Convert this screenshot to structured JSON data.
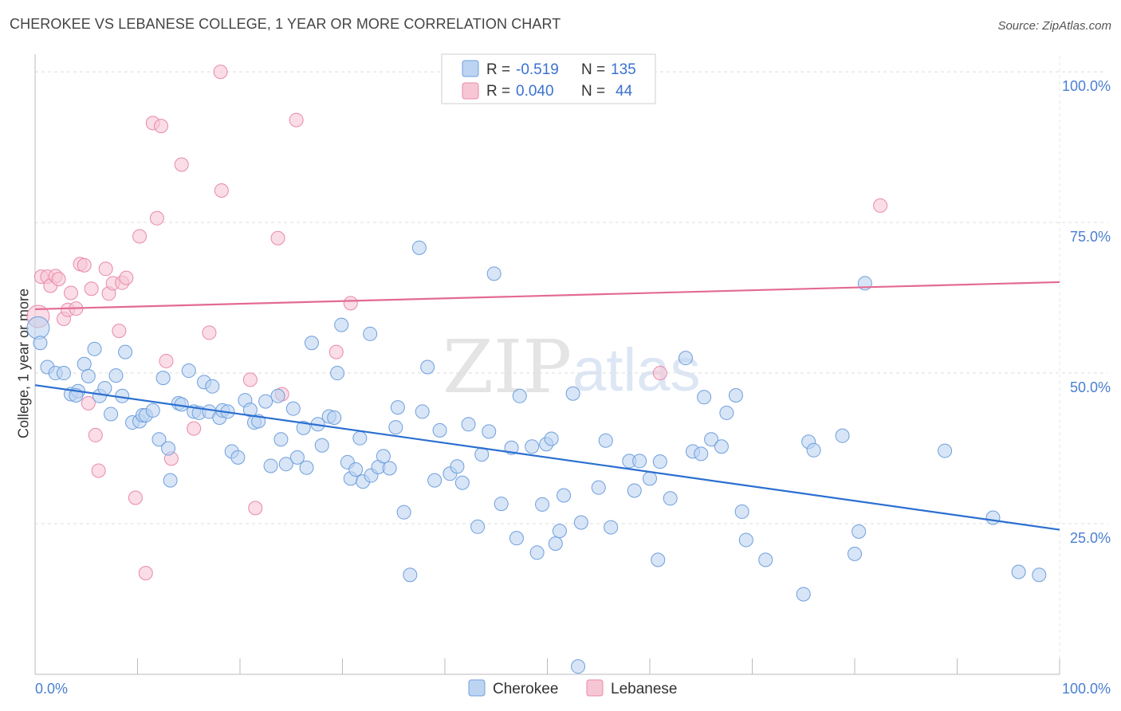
{
  "header": {
    "title": "CHEROKEE VS LEBANESE COLLEGE, 1 YEAR OR MORE CORRELATION CHART",
    "source": "Source: ZipAtlas.com"
  },
  "watermark": {
    "zip": "ZIP",
    "atlas": "atlas"
  },
  "colors": {
    "cherokee_fill": "#bcd4f2",
    "cherokee_stroke": "#6f9fdc",
    "cherokee_line": "#2b6fd0",
    "lebanese_fill": "#f7c6d5",
    "lebanese_stroke": "#e98aa8",
    "lebanese_line": "#e36a93",
    "tick_label": "#4a7fd0"
  },
  "legend_top": {
    "rows": [
      {
        "r_label": "R =",
        "r_value": "-0.519",
        "n_label": "N =",
        "n_value": "135"
      },
      {
        "r_label": "R =",
        "r_value": "0.040",
        "n_label": "N =",
        "n_value": "44"
      }
    ]
  },
  "chart_data": {
    "type": "scatter",
    "title": "CHEROKEE VS LEBANESE COLLEGE, 1 YEAR OR MORE CORRELATION CHART",
    "xlabel": "",
    "ylabel": "College, 1 year or more",
    "xlim": [
      0,
      100
    ],
    "ylim": [
      0,
      102
    ],
    "x_tick_labels": [
      "0.0%",
      "100.0%"
    ],
    "y_tick_labels": [
      "100.0%",
      "75.0%",
      "50.0%",
      "25.0%"
    ],
    "y_ticks": [
      100,
      75,
      50,
      25
    ],
    "grid": true,
    "legend_placement": "bottom-center",
    "series": [
      {
        "name": "Cherokee",
        "r": -0.519,
        "n": 135,
        "trend": [
          [
            0,
            48.0
          ],
          [
            100,
            24.0
          ]
        ],
        "points": [
          [
            0.3,
            57.5
          ],
          [
            0.5,
            55.0
          ],
          [
            1.2,
            51.0
          ],
          [
            2.0,
            50.0
          ],
          [
            2.8,
            50.0
          ],
          [
            3.5,
            46.5
          ],
          [
            4.2,
            47.0
          ],
          [
            4.0,
            46.3
          ],
          [
            4.8,
            51.5
          ],
          [
            5.2,
            49.5
          ],
          [
            5.8,
            54.0
          ],
          [
            6.3,
            46.2
          ],
          [
            6.8,
            47.5
          ],
          [
            7.4,
            43.2
          ],
          [
            7.9,
            49.6
          ],
          [
            8.5,
            46.2
          ],
          [
            8.8,
            53.5
          ],
          [
            9.5,
            41.8
          ],
          [
            10.2,
            42.0
          ],
          [
            10.5,
            43.0
          ],
          [
            10.8,
            43.0
          ],
          [
            11.5,
            43.8
          ],
          [
            12.1,
            39.0
          ],
          [
            12.5,
            49.2
          ],
          [
            13.0,
            37.5
          ],
          [
            13.2,
            32.2
          ],
          [
            14.0,
            45.0
          ],
          [
            14.3,
            44.8
          ],
          [
            15.0,
            50.4
          ],
          [
            15.5,
            43.6
          ],
          [
            16.0,
            43.4
          ],
          [
            16.5,
            48.5
          ],
          [
            17.0,
            43.6
          ],
          [
            17.3,
            47.8
          ],
          [
            18.0,
            42.6
          ],
          [
            18.3,
            43.8
          ],
          [
            18.8,
            43.6
          ],
          [
            19.2,
            37.0
          ],
          [
            19.8,
            36.0
          ],
          [
            20.5,
            45.5
          ],
          [
            21.0,
            43.9
          ],
          [
            21.4,
            41.8
          ],
          [
            21.8,
            42.0
          ],
          [
            22.5,
            45.3
          ],
          [
            23.0,
            34.6
          ],
          [
            23.7,
            46.2
          ],
          [
            24.0,
            39.0
          ],
          [
            24.5,
            34.9
          ],
          [
            25.2,
            44.1
          ],
          [
            25.6,
            36.0
          ],
          [
            26.2,
            40.9
          ],
          [
            26.5,
            34.3
          ],
          [
            27.0,
            55.0
          ],
          [
            27.6,
            41.5
          ],
          [
            28.0,
            38.0
          ],
          [
            28.7,
            42.8
          ],
          [
            29.2,
            42.6
          ],
          [
            29.5,
            50.0
          ],
          [
            29.9,
            58.0
          ],
          [
            30.5,
            35.2
          ],
          [
            30.8,
            32.5
          ],
          [
            31.3,
            34.0
          ],
          [
            31.7,
            39.2
          ],
          [
            32.0,
            32.0
          ],
          [
            32.7,
            56.5
          ],
          [
            32.8,
            33.0
          ],
          [
            33.5,
            34.4
          ],
          [
            34.0,
            36.2
          ],
          [
            34.6,
            34.2
          ],
          [
            35.2,
            41.0
          ],
          [
            35.4,
            44.3
          ],
          [
            36.0,
            26.9
          ],
          [
            36.6,
            16.5
          ],
          [
            37.5,
            70.8
          ],
          [
            37.8,
            43.6
          ],
          [
            38.3,
            51.0
          ],
          [
            39.0,
            32.2
          ],
          [
            39.5,
            40.5
          ],
          [
            40.5,
            33.3
          ],
          [
            41.2,
            34.5
          ],
          [
            41.7,
            31.8
          ],
          [
            42.3,
            41.5
          ],
          [
            43.2,
            24.5
          ],
          [
            43.6,
            36.5
          ],
          [
            44.3,
            40.3
          ],
          [
            44.8,
            66.5
          ],
          [
            45.5,
            28.3
          ],
          [
            46.5,
            37.6
          ],
          [
            47.0,
            22.6
          ],
          [
            47.3,
            46.2
          ],
          [
            48.5,
            37.8
          ],
          [
            49.0,
            20.2
          ],
          [
            49.5,
            28.2
          ],
          [
            49.9,
            38.2
          ],
          [
            50.4,
            39.1
          ],
          [
            50.8,
            21.7
          ],
          [
            51.2,
            23.8
          ],
          [
            51.6,
            29.7
          ],
          [
            52.5,
            46.6
          ],
          [
            53.0,
            1.3
          ],
          [
            53.3,
            25.2
          ],
          [
            55.0,
            31.0
          ],
          [
            55.7,
            38.8
          ],
          [
            56.2,
            24.4
          ],
          [
            58.0,
            35.4
          ],
          [
            58.5,
            30.5
          ],
          [
            59.0,
            35.4
          ],
          [
            60.0,
            32.5
          ],
          [
            60.8,
            19.0
          ],
          [
            61.0,
            35.3
          ],
          [
            62.0,
            29.2
          ],
          [
            63.5,
            52.5
          ],
          [
            64.2,
            37.0
          ],
          [
            65.0,
            36.6
          ],
          [
            65.3,
            46.0
          ],
          [
            66.0,
            39.0
          ],
          [
            67.0,
            37.8
          ],
          [
            67.5,
            43.4
          ],
          [
            68.4,
            46.3
          ],
          [
            69.0,
            27.0
          ],
          [
            69.4,
            22.3
          ],
          [
            71.3,
            19.0
          ],
          [
            75.0,
            13.3
          ],
          [
            75.5,
            38.6
          ],
          [
            76.0,
            37.2
          ],
          [
            78.8,
            39.6
          ],
          [
            80.0,
            20.0
          ],
          [
            80.4,
            23.7
          ],
          [
            81.0,
            64.9
          ],
          [
            88.8,
            37.1
          ],
          [
            93.5,
            26.0
          ],
          [
            96.0,
            17.0
          ],
          [
            98.0,
            16.5
          ]
        ]
      },
      {
        "name": "Lebanese",
        "r": 0.04,
        "n": 44,
        "trend": [
          [
            0,
            60.6
          ],
          [
            100,
            65.1
          ]
        ],
        "points": [
          [
            0.3,
            59.4
          ],
          [
            0.6,
            66.0
          ],
          [
            1.2,
            66.0
          ],
          [
            1.5,
            64.5
          ],
          [
            2.0,
            66.1
          ],
          [
            2.3,
            65.6
          ],
          [
            2.8,
            59.0
          ],
          [
            3.2,
            60.5
          ],
          [
            3.5,
            63.3
          ],
          [
            4.0,
            60.7
          ],
          [
            4.4,
            68.1
          ],
          [
            4.8,
            67.9
          ],
          [
            5.2,
            45.0
          ],
          [
            5.5,
            64.0
          ],
          [
            5.9,
            39.7
          ],
          [
            6.2,
            33.8
          ],
          [
            6.9,
            67.3
          ],
          [
            7.2,
            63.2
          ],
          [
            7.6,
            64.9
          ],
          [
            8.2,
            57.0
          ],
          [
            8.5,
            65.0
          ],
          [
            8.9,
            65.8
          ],
          [
            9.8,
            29.3
          ],
          [
            10.2,
            72.7
          ],
          [
            10.8,
            16.8
          ],
          [
            11.5,
            91.5
          ],
          [
            11.9,
            75.7
          ],
          [
            12.3,
            91.0
          ],
          [
            12.8,
            52.0
          ],
          [
            13.3,
            35.8
          ],
          [
            14.3,
            84.6
          ],
          [
            15.5,
            40.8
          ],
          [
            17.0,
            56.7
          ],
          [
            18.1,
            100.0
          ],
          [
            18.2,
            80.3
          ],
          [
            21.0,
            48.9
          ],
          [
            21.5,
            27.6
          ],
          [
            23.7,
            72.4
          ],
          [
            24.1,
            46.5
          ],
          [
            25.5,
            92.0
          ],
          [
            29.4,
            53.5
          ],
          [
            30.8,
            61.6
          ],
          [
            61.0,
            50.0
          ],
          [
            82.5,
            77.8
          ]
        ]
      }
    ]
  },
  "legend_bottom": {
    "items": [
      "Cherokee",
      "Lebanese"
    ]
  }
}
